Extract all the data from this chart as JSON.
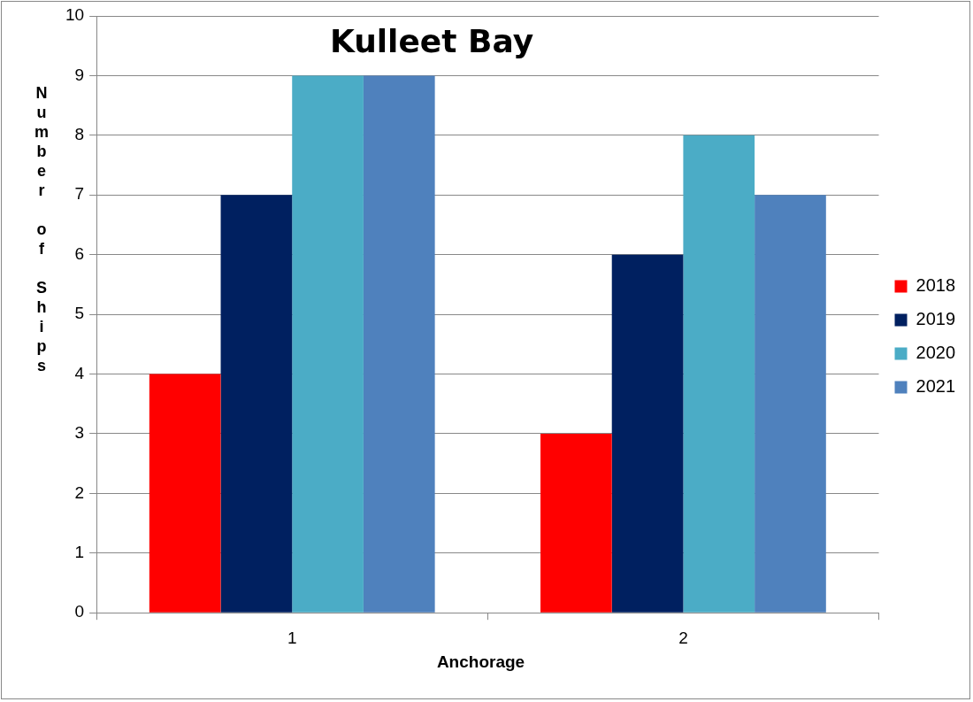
{
  "chart_data": {
    "type": "bar",
    "title": "Kulleet Bay",
    "xlabel": "Anchorage",
    "ylabel": "Number of Ships",
    "categories": [
      "1",
      "2"
    ],
    "series": [
      {
        "name": "2018",
        "color": "#ff0000",
        "values": [
          4,
          3
        ]
      },
      {
        "name": "2019",
        "color": "#002060",
        "values": [
          7,
          6
        ]
      },
      {
        "name": "2020",
        "color": "#4bacc6",
        "values": [
          9,
          8
        ]
      },
      {
        "name": "2021",
        "color": "#4f81bd",
        "values": [
          9,
          7
        ]
      }
    ],
    "ylim": [
      0,
      10
    ],
    "yticks": [
      0,
      1,
      2,
      3,
      4,
      5,
      6,
      7,
      8,
      9,
      10
    ],
    "grid": "y",
    "legend": "right"
  }
}
